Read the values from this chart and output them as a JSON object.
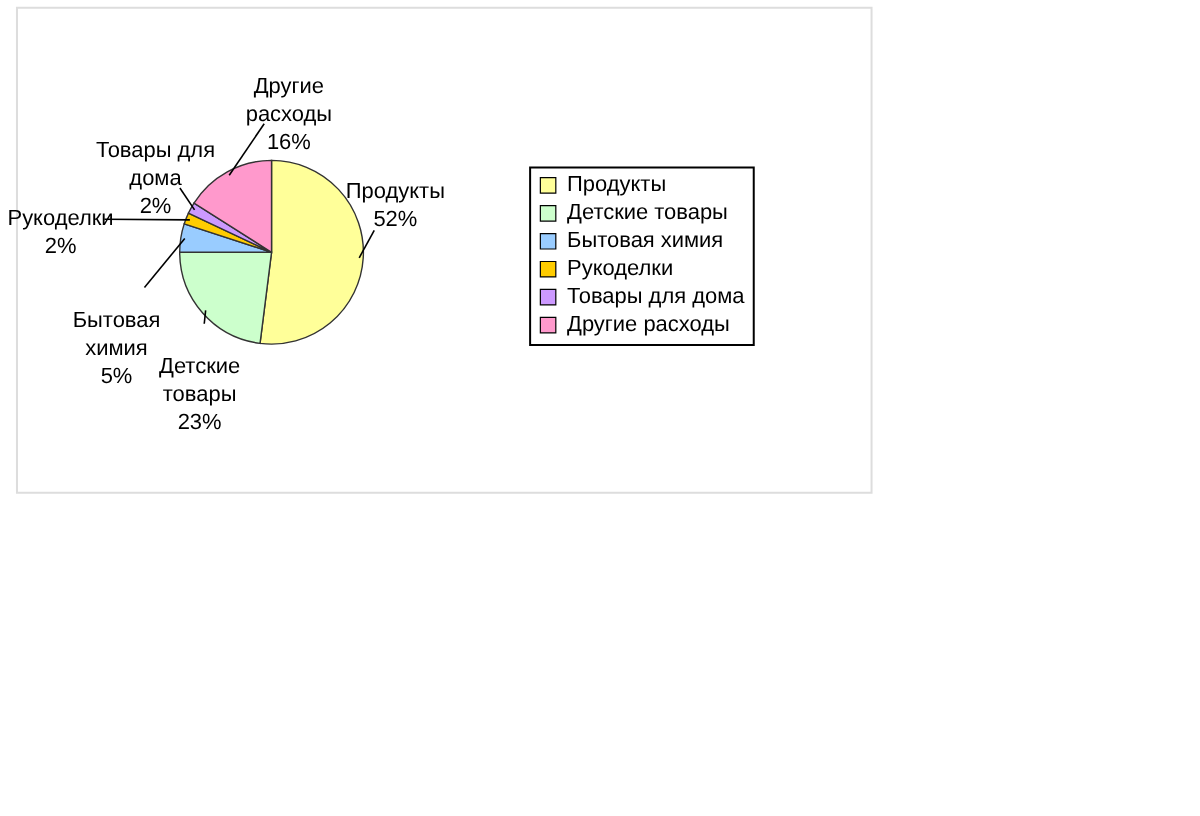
{
  "chart_data": {
    "type": "pie",
    "categories": [
      "Продукты",
      "Детские товары",
      "Бытовая химия",
      "Рукоделки",
      "Товары для дома",
      "Другие расходы"
    ],
    "values": [
      52,
      23,
      5,
      2,
      2,
      16
    ],
    "value_labels": [
      "52%",
      "23%",
      "5%",
      "2%",
      "2%",
      "16%"
    ],
    "colors": [
      "#ffff99",
      "#ccffcc",
      "#99ccff",
      "#ffcc00",
      "#cc99ff",
      "#ff99cc"
    ],
    "legend": "right"
  }
}
